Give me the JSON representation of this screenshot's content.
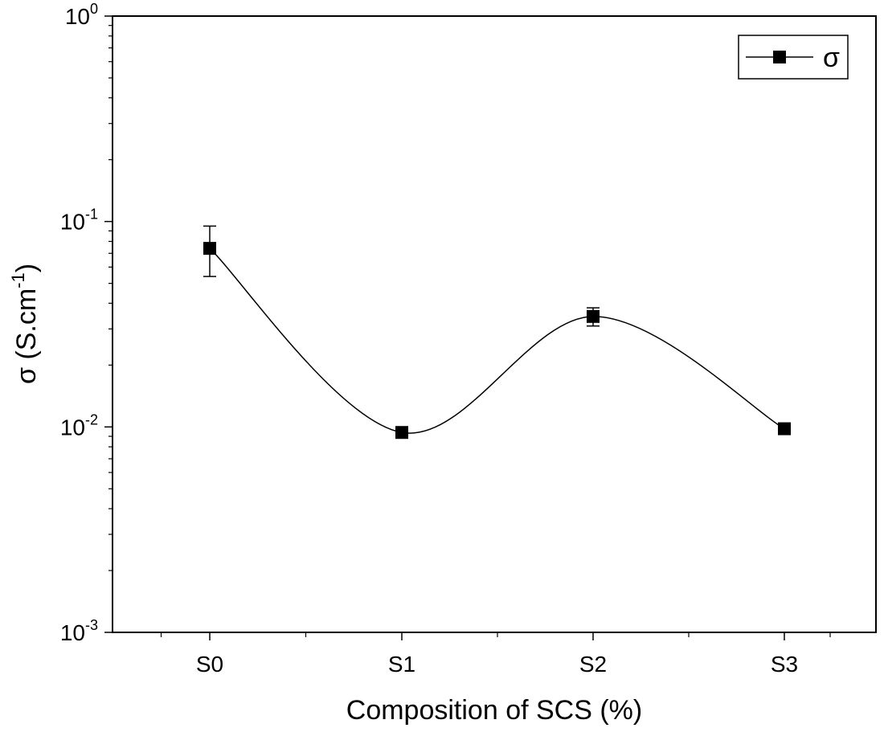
{
  "chart_data": {
    "type": "line",
    "title": "",
    "xlabel": "Composition of SCS (%)",
    "ylabel": {
      "prefix": "σ (S.cm",
      "exponent": "-1",
      "suffix": ")"
    },
    "categories": [
      "S0",
      "S1",
      "S2",
      "S3"
    ],
    "y_scale": "log",
    "ylim": [
      0.001,
      1
    ],
    "y_ticks": [
      {
        "value": 0.001,
        "base": "10",
        "exp": "-3"
      },
      {
        "value": 0.01,
        "base": "10",
        "exp": "-2"
      },
      {
        "value": 0.1,
        "base": "10",
        "exp": "-1"
      },
      {
        "value": 1,
        "base": "10",
        "exp": "0"
      }
    ],
    "series": [
      {
        "name": "σ",
        "color": "#000000",
        "marker": "square",
        "line": "smooth",
        "values": [
          0.074,
          0.0094,
          0.0345,
          0.0098
        ],
        "error_low": [
          0.054,
          null,
          0.031,
          null
        ],
        "error_high": [
          0.095,
          null,
          0.038,
          null
        ]
      }
    ],
    "legend": {
      "position": "top-right",
      "label": "σ"
    },
    "grid": false
  }
}
